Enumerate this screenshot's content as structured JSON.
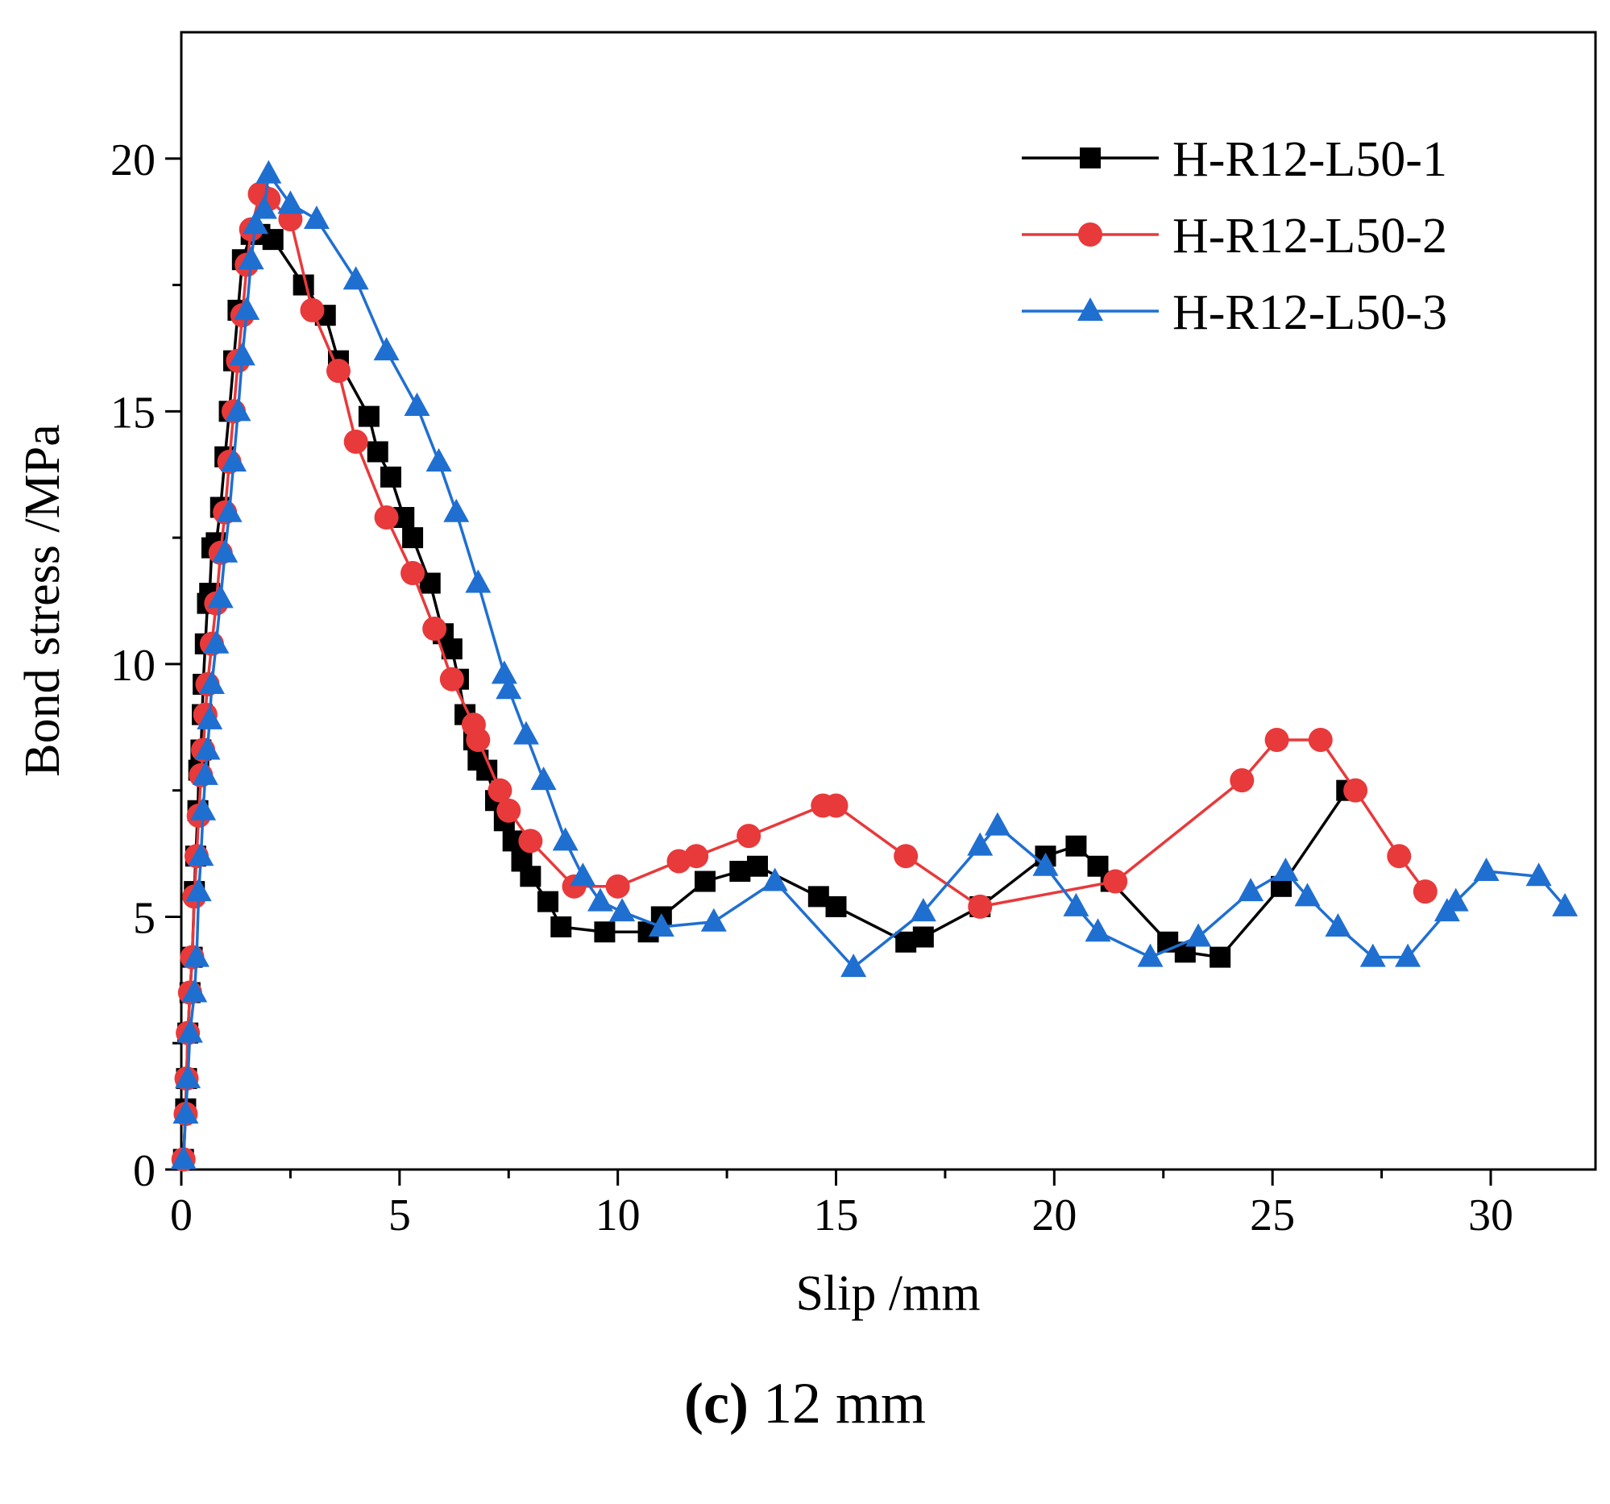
{
  "chart_data": {
    "type": "line",
    "xlabel": "Slip /mm",
    "ylabel": "Bond stress /MPa",
    "xlim": [
      0,
      32.4
    ],
    "ylim": [
      0,
      22.5
    ],
    "xticks": [
      0,
      5,
      10,
      15,
      20,
      25,
      30
    ],
    "yticks": [
      0,
      5,
      10,
      15,
      20
    ],
    "legend_position": "top-right",
    "grid": false,
    "series": [
      {
        "name": "H-R12-L50-1",
        "color": "#000000",
        "marker": "square",
        "points": [
          [
            0.05,
            0.2
          ],
          [
            0.1,
            1.2
          ],
          [
            0.12,
            1.8
          ],
          [
            0.15,
            2.7
          ],
          [
            0.2,
            3.5
          ],
          [
            0.25,
            4.2
          ],
          [
            0.3,
            5.5
          ],
          [
            0.33,
            6.2
          ],
          [
            0.38,
            7.1
          ],
          [
            0.4,
            7.9
          ],
          [
            0.45,
            8.3
          ],
          [
            0.48,
            9.0
          ],
          [
            0.5,
            9.6
          ],
          [
            0.55,
            10.4
          ],
          [
            0.6,
            11.2
          ],
          [
            0.65,
            11.4
          ],
          [
            0.7,
            12.3
          ],
          [
            0.8,
            12.4
          ],
          [
            0.9,
            13.1
          ],
          [
            1.0,
            14.1
          ],
          [
            1.1,
            15.0
          ],
          [
            1.2,
            16.0
          ],
          [
            1.3,
            17.0
          ],
          [
            1.4,
            18.0
          ],
          [
            1.6,
            18.5
          ],
          [
            1.8,
            18.5
          ],
          [
            2.1,
            18.4
          ],
          [
            2.8,
            17.5
          ],
          [
            3.3,
            16.9
          ],
          [
            3.6,
            16.0
          ],
          [
            4.3,
            14.9
          ],
          [
            4.5,
            14.2
          ],
          [
            4.8,
            13.7
          ],
          [
            5.1,
            12.9
          ],
          [
            5.3,
            12.5
          ],
          [
            5.7,
            11.6
          ],
          [
            6.0,
            10.6
          ],
          [
            6.2,
            10.3
          ],
          [
            6.35,
            9.7
          ],
          [
            6.5,
            9.0
          ],
          [
            6.7,
            8.5
          ],
          [
            6.8,
            8.1
          ],
          [
            7.0,
            7.9
          ],
          [
            7.2,
            7.3
          ],
          [
            7.4,
            6.9
          ],
          [
            7.6,
            6.5
          ],
          [
            7.8,
            6.1
          ],
          [
            8.0,
            5.8
          ],
          [
            8.4,
            5.3
          ],
          [
            8.7,
            4.8
          ],
          [
            9.7,
            4.7
          ],
          [
            10.7,
            4.7
          ],
          [
            11.0,
            5.0
          ],
          [
            12.0,
            5.7
          ],
          [
            12.8,
            5.9
          ],
          [
            13.2,
            6.0
          ],
          [
            14.6,
            5.4
          ],
          [
            15.0,
            5.2
          ],
          [
            16.6,
            4.5
          ],
          [
            17.0,
            4.6
          ],
          [
            18.3,
            5.2
          ],
          [
            19.8,
            6.2
          ],
          [
            20.5,
            6.4
          ],
          [
            21.0,
            6.0
          ],
          [
            21.3,
            5.7
          ],
          [
            22.6,
            4.5
          ],
          [
            23.0,
            4.3
          ],
          [
            23.8,
            4.2
          ],
          [
            25.2,
            5.6
          ],
          [
            26.7,
            7.5
          ]
        ]
      },
      {
        "name": "H-R12-L50-2",
        "color": "#E8393B",
        "marker": "circle",
        "points": [
          [
            0.05,
            0.2
          ],
          [
            0.1,
            1.1
          ],
          [
            0.12,
            1.8
          ],
          [
            0.15,
            2.7
          ],
          [
            0.2,
            3.5
          ],
          [
            0.25,
            4.2
          ],
          [
            0.3,
            5.4
          ],
          [
            0.35,
            6.2
          ],
          [
            0.4,
            7.0
          ],
          [
            0.45,
            7.8
          ],
          [
            0.5,
            8.3
          ],
          [
            0.55,
            9.0
          ],
          [
            0.6,
            9.6
          ],
          [
            0.7,
            10.4
          ],
          [
            0.8,
            11.2
          ],
          [
            0.9,
            12.2
          ],
          [
            1.0,
            13.0
          ],
          [
            1.1,
            14.0
          ],
          [
            1.2,
            15.0
          ],
          [
            1.3,
            16.0
          ],
          [
            1.4,
            16.9
          ],
          [
            1.5,
            17.9
          ],
          [
            1.6,
            18.6
          ],
          [
            1.8,
            19.3
          ],
          [
            2.0,
            19.2
          ],
          [
            2.5,
            18.8
          ],
          [
            3.0,
            17.0
          ],
          [
            3.6,
            15.8
          ],
          [
            4.0,
            14.4
          ],
          [
            4.7,
            12.9
          ],
          [
            5.3,
            11.8
          ],
          [
            5.8,
            10.7
          ],
          [
            6.2,
            9.7
          ],
          [
            6.7,
            8.8
          ],
          [
            6.8,
            8.5
          ],
          [
            7.3,
            7.5
          ],
          [
            7.5,
            7.1
          ],
          [
            8.0,
            6.5
          ],
          [
            9.0,
            5.6
          ],
          [
            10.0,
            5.6
          ],
          [
            11.4,
            6.1
          ],
          [
            11.8,
            6.2
          ],
          [
            13.0,
            6.6
          ],
          [
            14.7,
            7.2
          ],
          [
            15.0,
            7.2
          ],
          [
            16.6,
            6.2
          ],
          [
            18.3,
            5.2
          ],
          [
            21.4,
            5.7
          ],
          [
            24.3,
            7.7
          ],
          [
            25.1,
            8.5
          ],
          [
            26.1,
            8.5
          ],
          [
            26.9,
            7.5
          ],
          [
            27.9,
            6.2
          ],
          [
            28.5,
            5.5
          ]
        ]
      },
      {
        "name": "H-R12-L50-3",
        "color": "#1F6FD1",
        "marker": "triangle",
        "points": [
          [
            0.05,
            0.2
          ],
          [
            0.1,
            1.1
          ],
          [
            0.15,
            1.8
          ],
          [
            0.2,
            2.7
          ],
          [
            0.3,
            3.5
          ],
          [
            0.35,
            4.2
          ],
          [
            0.4,
            5.5
          ],
          [
            0.45,
            6.2
          ],
          [
            0.5,
            7.1
          ],
          [
            0.55,
            7.8
          ],
          [
            0.6,
            8.3
          ],
          [
            0.65,
            8.9
          ],
          [
            0.7,
            9.6
          ],
          [
            0.8,
            10.4
          ],
          [
            0.9,
            11.3
          ],
          [
            1.0,
            12.2
          ],
          [
            1.1,
            13.0
          ],
          [
            1.2,
            14.0
          ],
          [
            1.3,
            15.0
          ],
          [
            1.4,
            16.1
          ],
          [
            1.5,
            17.0
          ],
          [
            1.6,
            18.0
          ],
          [
            1.7,
            18.7
          ],
          [
            1.9,
            19.0
          ],
          [
            2.0,
            19.7
          ],
          [
            2.5,
            19.1
          ],
          [
            3.1,
            18.8
          ],
          [
            4.0,
            17.6
          ],
          [
            4.7,
            16.2
          ],
          [
            5.4,
            15.1
          ],
          [
            5.9,
            14.0
          ],
          [
            6.3,
            13.0
          ],
          [
            6.8,
            11.6
          ],
          [
            7.4,
            9.8
          ],
          [
            7.5,
            9.5
          ],
          [
            7.9,
            8.6
          ],
          [
            8.3,
            7.7
          ],
          [
            8.8,
            6.5
          ],
          [
            9.2,
            5.8
          ],
          [
            9.6,
            5.3
          ],
          [
            10.1,
            5.1
          ],
          [
            11.0,
            4.8
          ],
          [
            12.2,
            4.9
          ],
          [
            13.6,
            5.7
          ],
          [
            15.4,
            4.0
          ],
          [
            17.0,
            5.1
          ],
          [
            18.3,
            6.4
          ],
          [
            18.7,
            6.8
          ],
          [
            19.8,
            6.0
          ],
          [
            20.5,
            5.2
          ],
          [
            21.0,
            4.7
          ],
          [
            22.2,
            4.2
          ],
          [
            23.3,
            4.6
          ],
          [
            24.5,
            5.5
          ],
          [
            25.3,
            5.9
          ],
          [
            25.8,
            5.4
          ],
          [
            26.5,
            4.8
          ],
          [
            27.3,
            4.2
          ],
          [
            28.1,
            4.2
          ],
          [
            29.0,
            5.1
          ],
          [
            29.2,
            5.3
          ],
          [
            29.9,
            5.9
          ],
          [
            31.1,
            5.8
          ],
          [
            31.7,
            5.2
          ]
        ]
      }
    ]
  },
  "caption": {
    "label": "(c)",
    "text": " 12 mm"
  }
}
